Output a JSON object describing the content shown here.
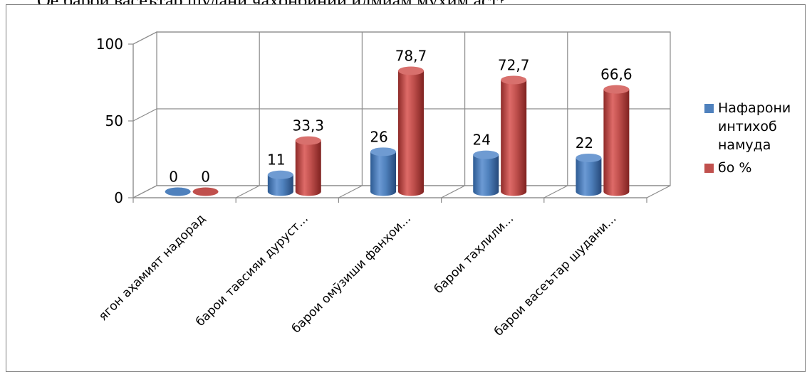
{
  "header": {
    "text": "Оё барои васеътар шудани ҷаҳонбинии илмиам муҳим аст?"
  },
  "chart_data": {
    "type": "bar",
    "categories": [
      "ягон аҳамият надорад",
      "барои тавсияи дуруст...",
      "барои омӯзиши фанҳои...",
      "барои таҳлили...",
      "барои васеътар шудани..."
    ],
    "series": [
      {
        "name": "Нафарони интихоб намуда",
        "values": [
          0,
          11,
          26,
          24,
          22
        ],
        "labels": [
          "0",
          "11",
          "26",
          "24",
          "22"
        ],
        "color": "#4f81bd"
      },
      {
        "name": "бо %",
        "values": [
          0,
          33.3,
          78.7,
          72.7,
          66.6
        ],
        "labels": [
          "0",
          "33,3",
          "78,7",
          "72,7",
          "66,6"
        ],
        "color": "#c0504d"
      }
    ],
    "ylim": [
      0,
      100
    ],
    "yticks": [
      "0",
      "50",
      "100"
    ],
    "grid": true,
    "legend": "right",
    "style": "3d-cylinder"
  }
}
